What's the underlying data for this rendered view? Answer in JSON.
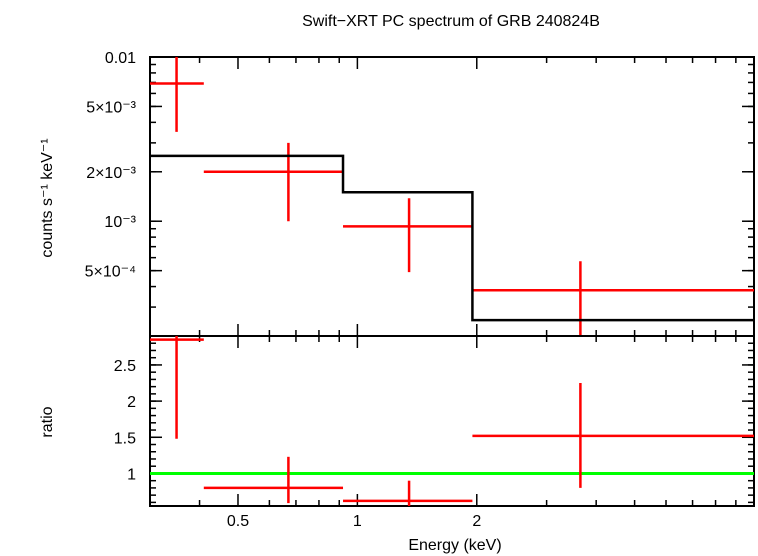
{
  "chart_data": [
    {
      "type": "scatter",
      "panel": "spectrum",
      "title": "Swift−XRT PC spectrum of GRB 240824B",
      "ylabel": "counts s⁻¹ keV⁻¹",
      "xscale": "log",
      "yscale": "log",
      "xlim": [
        0.3,
        10
      ],
      "ylim": [
        0.0002,
        0.01
      ],
      "yticks": [
        {
          "value": 0.01,
          "label": "0.01"
        },
        {
          "value": 0.005,
          "label": "5×10⁻³"
        },
        {
          "value": 0.002,
          "label": "2×10⁻³"
        },
        {
          "value": 0.001,
          "label": "10⁻³"
        },
        {
          "value": 0.0005,
          "label": "5×10⁻⁴"
        }
      ],
      "series": [
        {
          "kind": "data",
          "color": "#ff0000",
          "points": [
            {
              "x": 0.35,
              "xlo": 0.3,
              "xhi": 0.41,
              "y": 0.0069,
              "ylo": 0.0035,
              "yhi": 0.0104
            },
            {
              "x": 0.67,
              "xlo": 0.41,
              "xhi": 0.92,
              "y": 0.002,
              "ylo": 0.001,
              "yhi": 0.003
            },
            {
              "x": 1.35,
              "xlo": 0.92,
              "xhi": 1.95,
              "y": 0.00093,
              "ylo": 0.00049,
              "yhi": 0.00138
            },
            {
              "x": 3.65,
              "xlo": 1.95,
              "xhi": 10,
              "y": 0.00038,
              "ylo": 0.00019,
              "yhi": 0.00057
            }
          ]
        },
        {
          "kind": "model",
          "color": "#000000",
          "steps": [
            {
              "xlo": 0.3,
              "xhi": 0.92,
              "y": 0.0025
            },
            {
              "xlo": 0.92,
              "xhi": 1.95,
              "y": 0.0015
            },
            {
              "xlo": 1.95,
              "xhi": 10,
              "y": 0.00025
            }
          ]
        }
      ]
    },
    {
      "type": "scatter",
      "panel": "ratio",
      "xlabel": "Energy (keV)",
      "ylabel": "ratio",
      "xscale": "log",
      "xlim": [
        0.3,
        10
      ],
      "ylim": [
        0.55,
        2.9
      ],
      "xticks": [
        {
          "value": 0.5,
          "label": "0.5"
        },
        {
          "value": 1,
          "label": "1"
        },
        {
          "value": 2,
          "label": "2"
        }
      ],
      "yticks": [
        {
          "value": 1,
          "label": "1"
        },
        {
          "value": 1.5,
          "label": "1.5"
        },
        {
          "value": 2,
          "label": "2"
        },
        {
          "value": 2.5,
          "label": "2.5"
        }
      ],
      "reference_line": {
        "y": 1,
        "color": "#00ff00"
      },
      "series": [
        {
          "kind": "data",
          "color": "#ff0000",
          "points": [
            {
              "x": 0.35,
              "xlo": 0.3,
              "xhi": 0.41,
              "y": 2.85,
              "ylo": 1.48,
              "yhi": 2.9
            },
            {
              "x": 0.67,
              "xlo": 0.41,
              "xhi": 0.92,
              "y": 0.8,
              "ylo": 0.59,
              "yhi": 1.23
            },
            {
              "x": 1.35,
              "xlo": 0.92,
              "xhi": 1.95,
              "y": 0.62,
              "ylo": 0.55,
              "yhi": 0.9
            },
            {
              "x": 3.65,
              "xlo": 1.95,
              "xhi": 10,
              "y": 1.52,
              "ylo": 0.8,
              "yhi": 2.25
            }
          ]
        }
      ]
    }
  ]
}
